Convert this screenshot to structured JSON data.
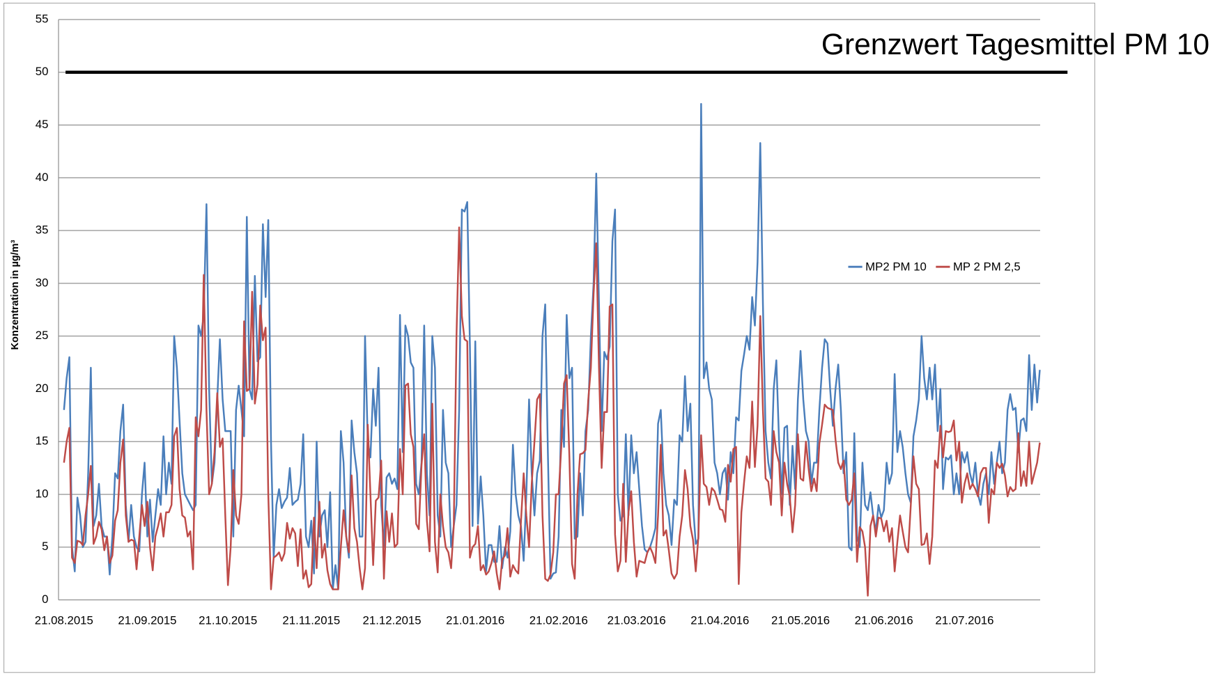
{
  "chart_data": {
    "type": "line",
    "y_label": "Konzentration in µg/m³",
    "threshold": {
      "value": 50,
      "label": "Grenzwert Tagesmittel PM 10"
    },
    "ylim": [
      0,
      55
    ],
    "yticks": [
      0,
      5,
      10,
      15,
      20,
      25,
      30,
      35,
      40,
      45,
      50,
      55
    ],
    "grid": true,
    "legend": "right",
    "categories": [
      "21.08.2015",
      null,
      null,
      null,
      null,
      null,
      null,
      null,
      null,
      null,
      null,
      null,
      null,
      null,
      null,
      null,
      null,
      null,
      null,
      null,
      null,
      null,
      null,
      null,
      null,
      null,
      null,
      null,
      null,
      null,
      null,
      "21.09.2015",
      null,
      null,
      null,
      null,
      null,
      null,
      null,
      null,
      null,
      null,
      null,
      null,
      null,
      null,
      null,
      null,
      null,
      null,
      null,
      null,
      null,
      null,
      null,
      null,
      null,
      null,
      null,
      null,
      null,
      "21.10.2015",
      null,
      null,
      null,
      null,
      null,
      null,
      null,
      null,
      null,
      null,
      null,
      null,
      null,
      null,
      null,
      null,
      null,
      null,
      null,
      null,
      null,
      null,
      null,
      null,
      null,
      null,
      null,
      null,
      null,
      null,
      "21.11.2015",
      null,
      null,
      null,
      null,
      null,
      null,
      null,
      null,
      null,
      null,
      null,
      null,
      null,
      null,
      null,
      null,
      null,
      null,
      null,
      null,
      null,
      null,
      null,
      null,
      null,
      null,
      null,
      null,
      null,
      "21.12.2015",
      null,
      null,
      null,
      null,
      null,
      null,
      null,
      null,
      null,
      null,
      null,
      null,
      null,
      null,
      null,
      null,
      null,
      null,
      null,
      null,
      null,
      null,
      null,
      null,
      null,
      null,
      null,
      null,
      null,
      null,
      "21.01.2016",
      null,
      null,
      null,
      null,
      null,
      null,
      null,
      null,
      null,
      null,
      null,
      null,
      null,
      null,
      null,
      null,
      null,
      null,
      null,
      null,
      null,
      null,
      null,
      null,
      null,
      null,
      null,
      null,
      null,
      null,
      "21.02.2016",
      null,
      null,
      null,
      null,
      null,
      null,
      null,
      null,
      null,
      null,
      null,
      null,
      null,
      null,
      null,
      null,
      null,
      null,
      null,
      null,
      null,
      null,
      null,
      null,
      null,
      null,
      null,
      null,
      "21.03.2016",
      null,
      null,
      null,
      null,
      null,
      null,
      null,
      null,
      null,
      null,
      null,
      null,
      null,
      null,
      null,
      null,
      null,
      null,
      null,
      null,
      null,
      null,
      null,
      null,
      null,
      null,
      null,
      null,
      null,
      null,
      "21.04.2016",
      null,
      null,
      null,
      null,
      null,
      null,
      null,
      null,
      null,
      null,
      null,
      null,
      null,
      null,
      null,
      null,
      null,
      null,
      null,
      null,
      null,
      null,
      null,
      null,
      null,
      null,
      null,
      null,
      null,
      "21.05.2016",
      null,
      null,
      null,
      null,
      null,
      null,
      null,
      null,
      null,
      null,
      null,
      null,
      null,
      null,
      null,
      null,
      null,
      null,
      null,
      null,
      null,
      null,
      null,
      null,
      null,
      null,
      null,
      null,
      null,
      null,
      "21.06.2016",
      null,
      null,
      null,
      null,
      null,
      null,
      null,
      null,
      null,
      null,
      null,
      null,
      null,
      null,
      null,
      null,
      null,
      null,
      null,
      null,
      null,
      null,
      null,
      null,
      null,
      null,
      null,
      null,
      null,
      "21.07.2016",
      null,
      null,
      null,
      null,
      null,
      null,
      null,
      null,
      null,
      null,
      null,
      null,
      null,
      null,
      null,
      null,
      null,
      null,
      null,
      null,
      null,
      null,
      null,
      null,
      null,
      null,
      null,
      null
    ],
    "series": [
      {
        "name": "MP2 PM 10",
        "color": "#4a7ebb",
        "values": [
          18,
          21,
          23,
          5,
          2.7,
          9.7,
          8,
          5,
          5.5,
          12,
          22,
          7,
          8,
          11,
          7,
          6,
          6,
          2.4,
          6,
          12,
          11.5,
          16,
          18.5,
          9,
          5.5,
          9,
          6,
          5,
          4.6,
          10,
          13,
          6,
          9.5,
          5.5,
          8,
          10.5,
          9,
          15.5,
          10,
          13,
          11,
          25,
          22,
          17,
          12,
          10,
          9.5,
          9,
          8.5,
          9,
          26,
          25,
          27,
          37.5,
          20,
          11,
          13,
          19,
          24.7,
          19,
          16,
          16,
          16,
          6,
          18,
          20.3,
          18,
          15.5,
          36.3,
          20,
          19,
          30.7,
          22.6,
          23,
          35.6,
          28.7,
          36,
          15,
          4,
          9,
          10.5,
          8.7,
          9.3,
          9.7,
          12.5,
          9,
          9.3,
          9.5,
          11,
          15.7,
          6,
          5,
          7.5,
          2.5,
          15,
          6,
          8,
          8.5,
          5,
          10.2,
          1,
          3.3,
          1,
          16,
          13,
          6,
          4,
          17,
          14,
          12,
          6,
          6,
          25,
          15,
          13.5,
          20,
          16.5,
          22,
          9,
          5,
          11.6,
          12,
          11,
          11.5,
          10.5,
          27,
          14,
          26,
          25,
          22.5,
          22,
          11,
          10,
          13,
          26,
          12,
          8,
          25,
          22,
          8,
          6,
          18,
          13,
          12,
          5,
          7,
          9,
          18,
          37,
          36.8,
          37.7,
          24,
          7,
          24.5,
          7.2,
          11.7,
          8,
          2.7,
          5.2,
          5.2,
          3.6,
          3.6,
          7,
          3,
          5,
          4,
          6.5,
          14.7,
          10,
          8,
          7,
          3.7,
          10,
          19,
          12,
          8,
          12,
          13.2,
          25,
          28,
          14,
          2,
          2.5,
          2.6,
          6,
          18,
          14.5,
          27,
          21,
          22,
          5.8,
          6,
          12,
          8,
          16,
          18,
          25,
          30,
          40.4,
          28,
          16,
          23.5,
          22.8,
          24,
          34,
          37,
          10,
          7.5,
          8,
          15.7,
          8,
          15.6,
          12,
          14,
          10.5,
          7,
          4.8,
          4.5,
          5,
          5.8,
          6.8,
          16.7,
          18,
          12,
          9,
          8,
          5.2,
          9.5,
          9,
          15.6,
          15,
          21.2,
          16,
          18.6,
          9,
          5.3,
          5.8,
          47,
          21,
          22.5,
          20,
          19,
          13,
          12,
          10,
          12,
          12.5,
          9.5,
          14,
          12,
          17.3,
          17,
          21.7,
          23.3,
          25,
          23.7,
          28.7,
          26,
          32,
          43.3,
          28,
          16,
          13,
          11.5,
          20,
          22.7,
          15,
          10,
          16.3,
          16.5,
          9,
          14.6,
          10.5,
          19,
          23.6,
          19,
          16,
          15,
          11,
          13,
          13,
          18,
          22,
          24.7,
          24.3,
          20,
          16.5,
          20,
          22.3,
          18,
          12,
          14,
          5,
          4.7,
          15.8,
          6,
          5,
          13,
          9,
          8.5,
          10.2,
          8,
          6.5,
          9,
          7.8,
          8.5,
          13,
          11,
          12,
          21.4,
          14,
          16,
          14.5,
          12,
          10,
          9.2,
          15.5,
          17,
          19,
          25,
          21,
          19,
          22,
          19,
          22.3,
          16,
          20,
          10.5,
          13.5,
          13.3,
          13.7,
          10,
          12,
          10,
          14,
          13,
          14,
          12,
          11,
          13,
          10,
          9,
          11,
          12,
          10,
          14,
          11,
          13,
          15,
          12,
          13,
          18,
          19.5,
          18,
          18.2,
          14,
          17,
          17.2,
          16,
          23.2,
          18,
          22.3,
          18.7,
          21.8
        ]
      },
      {
        "name": "MP 2 PM 2,5",
        "color": "#be4b48",
        "values": [
          13,
          15,
          16.3,
          4,
          3.5,
          5.6,
          5.5,
          5.2,
          8,
          10,
          12.7,
          5.3,
          6,
          7.4,
          6.7,
          4.7,
          6,
          3.5,
          4.2,
          7.5,
          8.5,
          13,
          15.2,
          8,
          5.5,
          5.7,
          5.6,
          2.9,
          6,
          9,
          7,
          9.3,
          5,
          2.8,
          6,
          7,
          8.2,
          6,
          8.3,
          8.3,
          9,
          15.5,
          16.3,
          10.5,
          8,
          7.8,
          6,
          6.5,
          2.9,
          17.3,
          15.5,
          18,
          30.8,
          18,
          10,
          11,
          14,
          19.6,
          14.5,
          15.3,
          8,
          1.4,
          5,
          12.3,
          8,
          7.2,
          10,
          26.4,
          19.8,
          20,
          29.2,
          18.6,
          20.4,
          27.9,
          24.6,
          25.8,
          10,
          1,
          4,
          4.2,
          4.5,
          3.7,
          4.4,
          7.3,
          5.8,
          6.8,
          6.3,
          3.2,
          6.7,
          2,
          2.8,
          1.2,
          1.5,
          7.8,
          3,
          9.3,
          4,
          5.3,
          2.8,
          1.5,
          1,
          1,
          1,
          5,
          8.5,
          6,
          4.5,
          11.8,
          6.8,
          5.5,
          3,
          1,
          3,
          16.6,
          10,
          3.3,
          9.4,
          9.7,
          13.2,
          2,
          8.4,
          5.5,
          8.2,
          5,
          5.3,
          14.3,
          10,
          20.3,
          20.5,
          15.7,
          14.5,
          7.2,
          6.7,
          12.8,
          15.7,
          7.5,
          4.6,
          18.6,
          5.5,
          2.6,
          10,
          7,
          5,
          4.5,
          3,
          7,
          25,
          35.3,
          26.9,
          24.7,
          24.5,
          4,
          5,
          5.3,
          7,
          2.8,
          3.3,
          2.4,
          2.7,
          3.5,
          4.6,
          2.5,
          1,
          3.8,
          4.2,
          6.8,
          2.2,
          3.3,
          2.8,
          2.5,
          7.4,
          12,
          8,
          5,
          11,
          15,
          19,
          19.5,
          8,
          2,
          1.8,
          2.4,
          4.5,
          10,
          10,
          14.5,
          20.5,
          21.3,
          13.5,
          3.4,
          2,
          10,
          13.8,
          13.9,
          14.2,
          18.9,
          22,
          29,
          33.8,
          22,
          12.5,
          17.8,
          17.8,
          27.8,
          28,
          6.2,
          2.7,
          3.7,
          11,
          3.6,
          8.3,
          10.3,
          5.5,
          2.2,
          3.7,
          3.6,
          3.5,
          4.5,
          5,
          4.4,
          3.5,
          8,
          14.7,
          6.1,
          6.6,
          4.7,
          2.5,
          2,
          2.5,
          6,
          8,
          12.3,
          10.5,
          7,
          5.7,
          2.7,
          6,
          15.6,
          11,
          10.7,
          9,
          10.6,
          10.3,
          9.5,
          8.6,
          8.5,
          7.4,
          12.8,
          11.2,
          14.3,
          14.5,
          1.5,
          8.3,
          11.2,
          13.6,
          12.5,
          18.8,
          12.6,
          16.5,
          26.9,
          18,
          11.5,
          11.2,
          9,
          16,
          14,
          13,
          8,
          13,
          11,
          9.8,
          6.4,
          9,
          15.7,
          11.5,
          11.3,
          15,
          12.4,
          10.3,
          11.5,
          10.3,
          14.8,
          16.6,
          18.5,
          18.2,
          18.1,
          18,
          15.2,
          13,
          12.4,
          13.2,
          9.5,
          9,
          9.5,
          12,
          3.6,
          6.9,
          6.5,
          5,
          0.4,
          7,
          8,
          6,
          7.8,
          7.7,
          6.5,
          7.5,
          5.5,
          6.8,
          2.7,
          5.5,
          8,
          6.5,
          5,
          4.5,
          9,
          13.6,
          11,
          10.5,
          5.2,
          5.3,
          6.3,
          3.4,
          6,
          13.2,
          12.5,
          16.5,
          13.5,
          16,
          15.9,
          16,
          17,
          13.2,
          15,
          9.2,
          11,
          12,
          10.5,
          11,
          10.5,
          9.8,
          12,
          12.5,
          12.5,
          7.3,
          10.5,
          10,
          13,
          12.5,
          12.9,
          11.8,
          9.8,
          10.7,
          10.3,
          10.5,
          15.8,
          10.8,
          12.2,
          10.8,
          15,
          11,
          12,
          13,
          14.9
        ]
      }
    ]
  }
}
